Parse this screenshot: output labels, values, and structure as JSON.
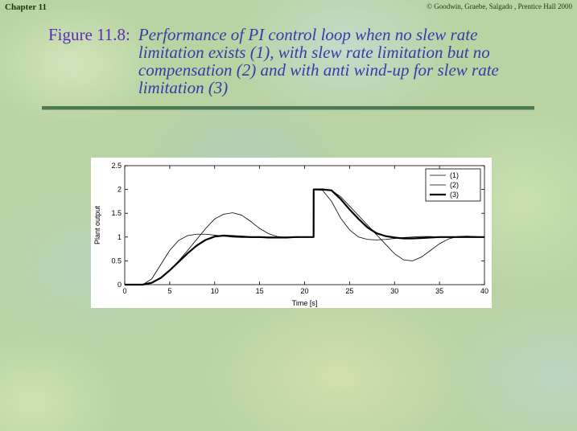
{
  "header": {
    "chapter": "Chapter 11",
    "copyright": "© Goodwin, Graebe, Salgado , Prentice Hall 2000"
  },
  "figure": {
    "label": "Figure 11.8:",
    "caption": "Performance of PI control loop when no slew rate limitation exists (1), with slew rate limitation but no compensation (2) and with anti wind-up for slew rate limitation (3)"
  },
  "chart_data": {
    "type": "line",
    "title": "",
    "xlabel": "Time [s]",
    "ylabel": "Plant output",
    "xlim": [
      0,
      40
    ],
    "ylim": [
      0,
      2.5
    ],
    "xticks": [
      0,
      5,
      10,
      15,
      20,
      25,
      30,
      35,
      40
    ],
    "yticks": [
      0,
      0.5,
      1,
      1.5,
      2,
      2.5
    ],
    "xtick_labels": [
      "0",
      "5",
      "10",
      "15",
      "20",
      "25",
      "30",
      "35",
      "40"
    ],
    "ytick_labels": [
      "0",
      "0.5",
      "1",
      "1.5",
      "2",
      "2.5"
    ],
    "grid": false,
    "legend_position": "top-right",
    "series": [
      {
        "name": "(1)",
        "style": "thin",
        "x": [
          0,
          2,
          3,
          4,
          5,
          6,
          7,
          8,
          9,
          10,
          11,
          12,
          13,
          14,
          15,
          16,
          17,
          18,
          19,
          20,
          21,
          21.01,
          22,
          23,
          24,
          25,
          26,
          27,
          28,
          29,
          30,
          31,
          32,
          33,
          34,
          35,
          36,
          37,
          38,
          39,
          40
        ],
        "y": [
          0,
          0,
          0.12,
          0.42,
          0.72,
          0.93,
          1.03,
          1.06,
          1.06,
          1.04,
          1.02,
          1.0,
          0.99,
          0.99,
          0.99,
          1.0,
          1.0,
          1.0,
          1.0,
          1.0,
          1.0,
          2.0,
          1.98,
          1.75,
          1.4,
          1.15,
          1.0,
          0.95,
          0.94,
          0.95,
          0.97,
          0.99,
          1.0,
          1.01,
          1.01,
          1.0,
          1.0,
          1.0,
          1.0,
          1.0,
          1.0
        ]
      },
      {
        "name": "(2)",
        "style": "thin",
        "x": [
          0,
          2,
          3,
          4,
          5,
          6,
          7,
          8,
          9,
          10,
          11,
          12,
          13,
          14,
          15,
          16,
          17,
          18,
          19,
          20,
          21,
          21.01,
          22,
          23,
          24,
          25,
          26,
          27,
          28,
          29,
          30,
          31,
          32,
          33,
          34,
          35,
          36,
          37,
          38,
          39,
          40
        ],
        "y": [
          0,
          0,
          0.04,
          0.14,
          0.3,
          0.5,
          0.72,
          0.95,
          1.18,
          1.38,
          1.48,
          1.51,
          1.46,
          1.33,
          1.18,
          1.07,
          1.01,
          0.99,
          0.99,
          1.0,
          1.0,
          2.0,
          2.0,
          1.98,
          1.85,
          1.65,
          1.45,
          1.25,
          1.05,
          0.85,
          0.65,
          0.52,
          0.5,
          0.58,
          0.72,
          0.86,
          0.96,
          1.01,
          1.02,
          1.01,
          1.0
        ]
      },
      {
        "name": "(3)",
        "style": "thick",
        "x": [
          0,
          2,
          3,
          4,
          5,
          6,
          7,
          8,
          9,
          10,
          11,
          12,
          13,
          14,
          15,
          16,
          17,
          18,
          19,
          20,
          21,
          21.01,
          22,
          23,
          24,
          25,
          26,
          27,
          28,
          29,
          30,
          31,
          32,
          33,
          34,
          35,
          36,
          37,
          38,
          39,
          40
        ],
        "y": [
          0,
          0,
          0.04,
          0.14,
          0.3,
          0.48,
          0.66,
          0.82,
          0.94,
          1.01,
          1.03,
          1.02,
          1.01,
          1.0,
          1.0,
          0.99,
          0.99,
          0.99,
          1.0,
          1.0,
          1.0,
          2.0,
          2.0,
          1.98,
          1.8,
          1.58,
          1.38,
          1.2,
          1.08,
          1.02,
          0.99,
          0.97,
          0.97,
          0.98,
          0.99,
          1.0,
          1.0,
          1.0,
          1.0,
          1.0,
          1.0
        ]
      }
    ]
  }
}
